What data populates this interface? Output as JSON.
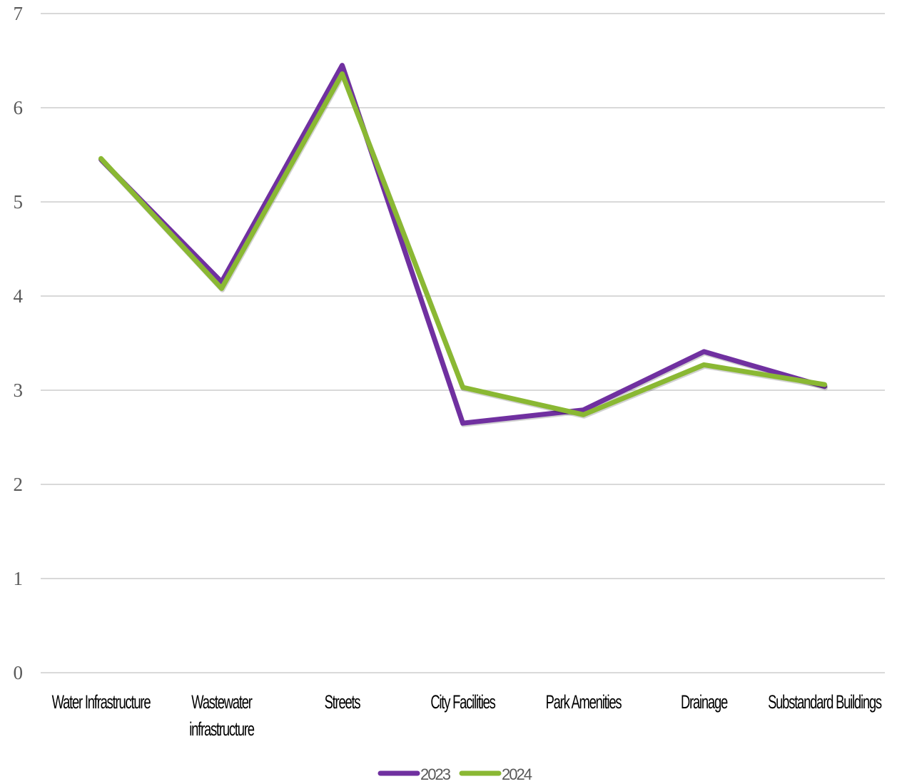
{
  "chart_data": {
    "type": "line",
    "title": "",
    "xlabel": "",
    "ylabel": "",
    "categories": [
      "Water Infrastructure",
      "Wastewater infrastructure",
      "Streets",
      "City Facilities",
      "Park Amenities",
      "Drainage",
      "Substandard Buildings"
    ],
    "series": [
      {
        "name": "2023",
        "color": "#7030a0",
        "values": [
          5.45,
          4.15,
          6.45,
          2.65,
          2.79,
          3.41,
          3.04
        ]
      },
      {
        "name": "2024",
        "color": "#8ab833",
        "values": [
          5.46,
          4.08,
          6.36,
          3.03,
          2.74,
          3.27,
          3.06
        ]
      }
    ],
    "ylim": [
      0,
      7
    ],
    "yticks": [
      "0",
      "1",
      "2",
      "3",
      "4",
      "5",
      "6",
      "7"
    ],
    "grid": true,
    "legend_position": "bottom"
  }
}
